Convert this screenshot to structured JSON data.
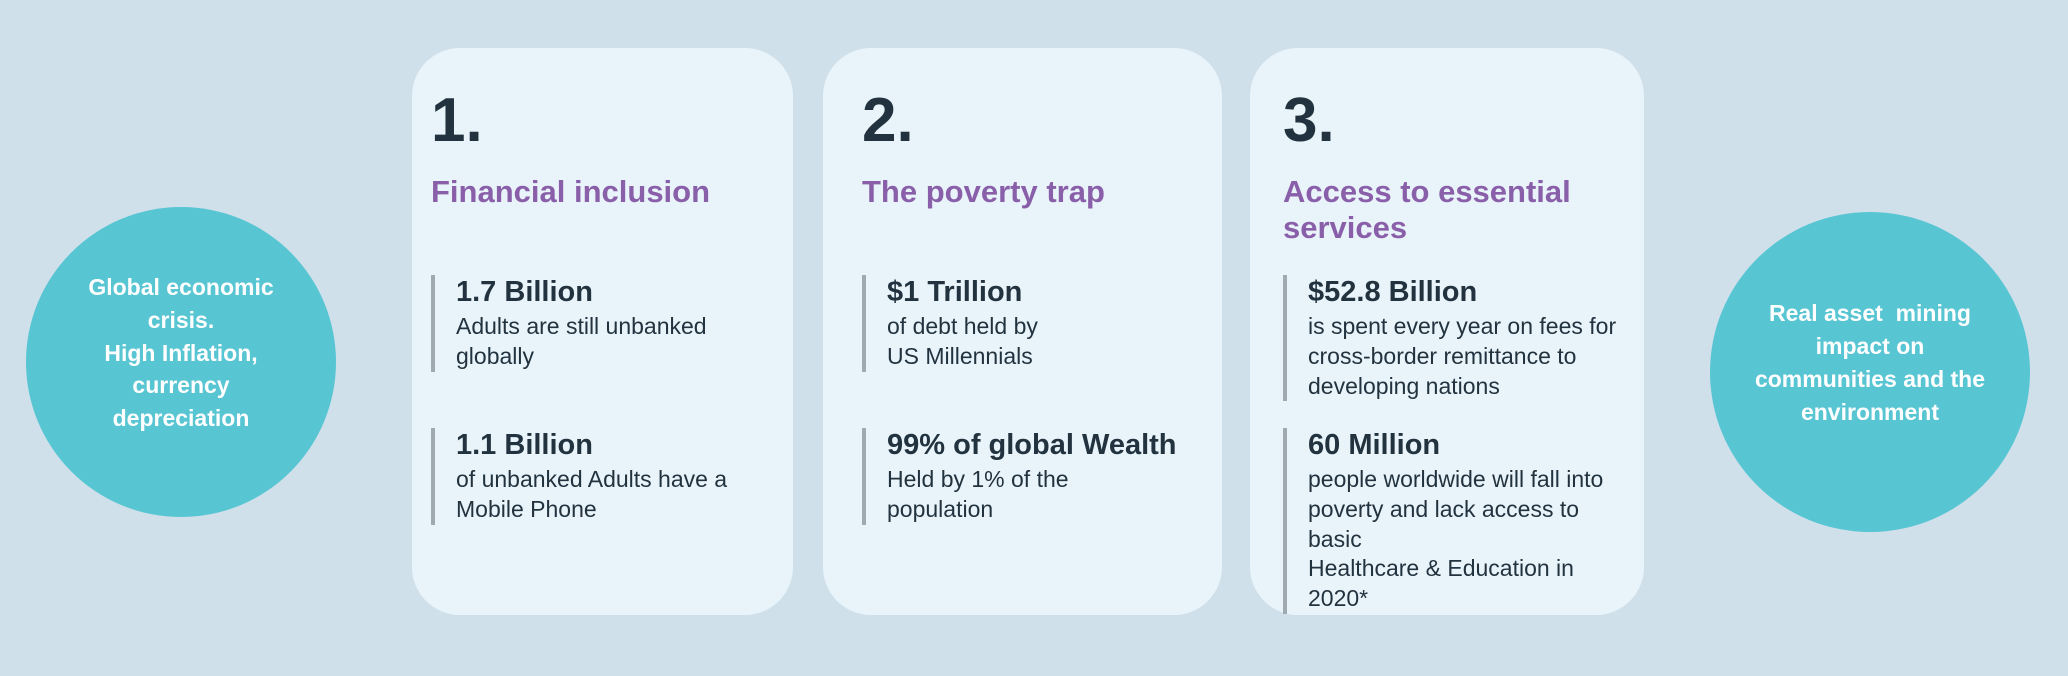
{
  "theme": {
    "background": "#cfe0eb",
    "card_background": "#e9f4fa",
    "circle_color": "#58c5d3",
    "heading_purple": "#8a5fa9",
    "text_dark": "#22333f",
    "divider_gray": "#9fa9af",
    "circle_text_color": "#ffffff"
  },
  "left_circle": {
    "text": "Global economic\ncrisis.\nHigh Inflation,\ncurrency\ndepreciation"
  },
  "right_circle": {
    "text": "Real asset  mining\nimpact on\ncommunities and the\nenvironment"
  },
  "cards": [
    {
      "number": "1.",
      "title": "Financial inclusion",
      "stats": [
        {
          "value": "1.7 Billion",
          "description": "Adults are still unbanked\nglobally"
        },
        {
          "value": "1.1 Billion",
          "description": "of unbanked Adults have a\nMobile Phone"
        }
      ]
    },
    {
      "number": "2.",
      "title": "The poverty trap",
      "stats": [
        {
          "value": "$1 Trillion",
          "description": "of debt held by\nUS Millennials"
        },
        {
          "value": "99% of global Wealth",
          "description": "Held by 1% of the\npopulation"
        }
      ]
    },
    {
      "number": "3.",
      "title": "Access to essential\nservices",
      "stats": [
        {
          "value": "$52.8 Billion",
          "description": "is spent every year on fees for\ncross-border remittance to\ndeveloping nations"
        },
        {
          "value": "60 Million",
          "description": "people worldwide will fall into\npoverty and lack access to basic\nHealthcare & Education in 2020*"
        }
      ]
    }
  ]
}
